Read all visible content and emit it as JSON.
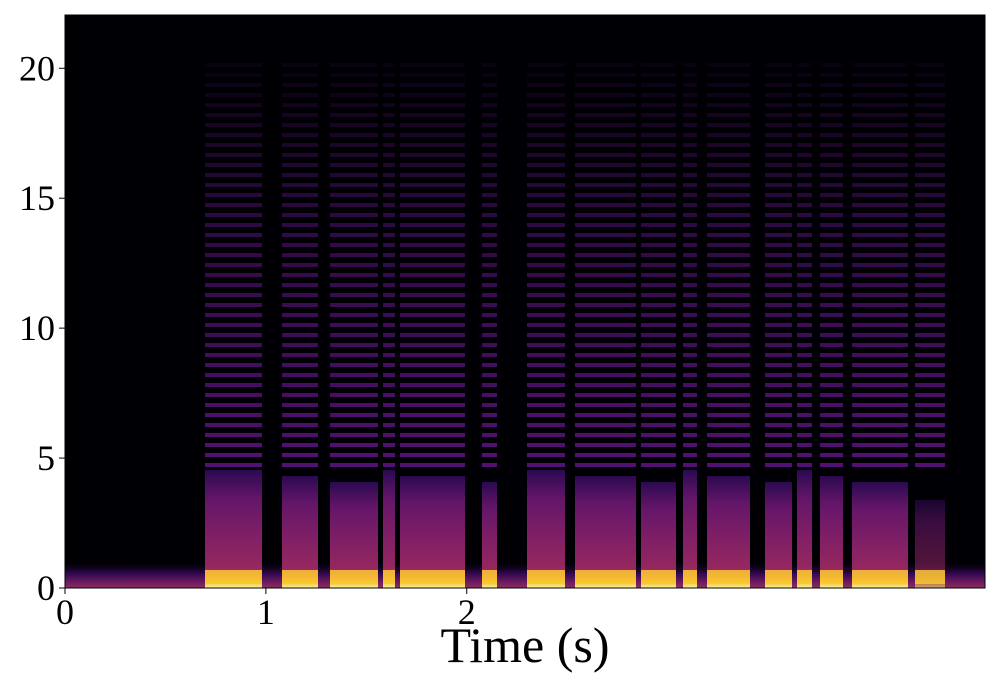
{
  "chart_data": {
    "type": "spectrogram",
    "xlabel": "Time (s)",
    "xlim": [
      0,
      4.58
    ],
    "xticks": [
      0,
      1,
      2
    ],
    "ylim": [
      0,
      22.05
    ],
    "yticks": [
      0,
      5,
      10,
      15,
      20
    ],
    "colormap": "inferno"
  }
}
